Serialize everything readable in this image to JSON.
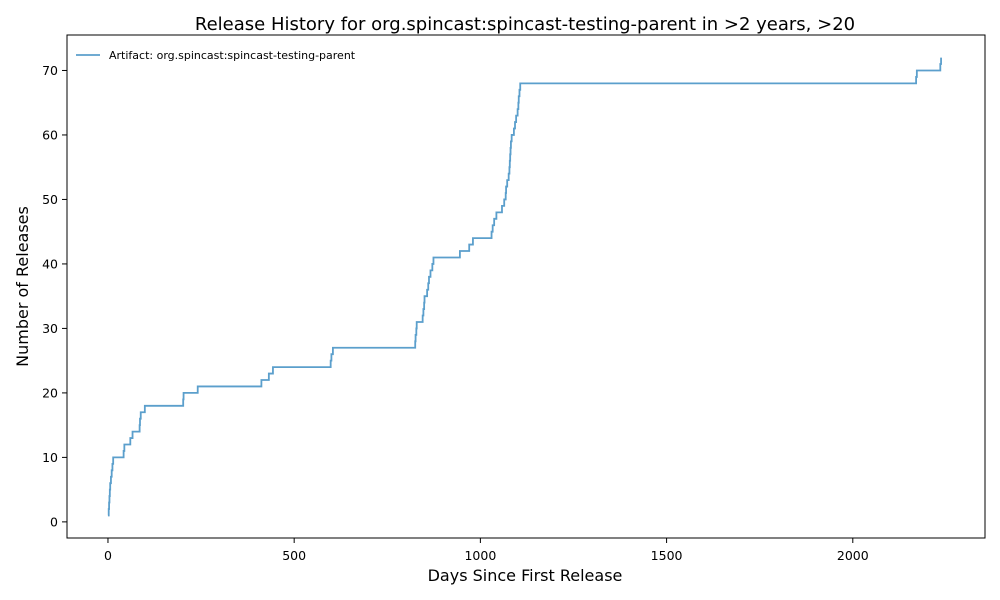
{
  "chart_data": {
    "type": "line",
    "title": "Release History for org.spincast:spincast-testing-parent in >2 years, >20",
    "xlabel": "Days Since First Release",
    "ylabel": "Number of Releases",
    "xlim": [
      -110,
      2355
    ],
    "ylim": [
      -2.5,
      75.5
    ],
    "xticks": [
      0,
      500,
      1000,
      1500,
      2000
    ],
    "yticks": [
      0,
      10,
      20,
      30,
      40,
      50,
      60,
      70
    ],
    "grid": false,
    "legend_position": "top-left",
    "line_style": "step-post",
    "series": [
      {
        "name": "Artifact: org.spincast:spincast-testing-parent",
        "color": "#5b9fcc",
        "points": [
          [
            0,
            1
          ],
          [
            2,
            2
          ],
          [
            3,
            3
          ],
          [
            4,
            4
          ],
          [
            5,
            5
          ],
          [
            6,
            6
          ],
          [
            8,
            7
          ],
          [
            10,
            8
          ],
          [
            12,
            9
          ],
          [
            14,
            10
          ],
          [
            42,
            11
          ],
          [
            44,
            12
          ],
          [
            60,
            13
          ],
          [
            66,
            14
          ],
          [
            85,
            15
          ],
          [
            86,
            16
          ],
          [
            88,
            17
          ],
          [
            99,
            18
          ],
          [
            202,
            19
          ],
          [
            203,
            20
          ],
          [
            241,
            21
          ],
          [
            412,
            22
          ],
          [
            432,
            23
          ],
          [
            443,
            24
          ],
          [
            598,
            25
          ],
          [
            600,
            26
          ],
          [
            604,
            27
          ],
          [
            825,
            28
          ],
          [
            826,
            29
          ],
          [
            828,
            30
          ],
          [
            829,
            31
          ],
          [
            845,
            32
          ],
          [
            847,
            33
          ],
          [
            849,
            34
          ],
          [
            850,
            35
          ],
          [
            857,
            36
          ],
          [
            860,
            37
          ],
          [
            862,
            38
          ],
          [
            866,
            39
          ],
          [
            871,
            40
          ],
          [
            874,
            41
          ],
          [
            945,
            42
          ],
          [
            970,
            43
          ],
          [
            980,
            44
          ],
          [
            1030,
            45
          ],
          [
            1033,
            46
          ],
          [
            1037,
            47
          ],
          [
            1043,
            48
          ],
          [
            1058,
            49
          ],
          [
            1064,
            50
          ],
          [
            1068,
            51
          ],
          [
            1069,
            52
          ],
          [
            1072,
            53
          ],
          [
            1076,
            54
          ],
          [
            1078,
            55
          ],
          [
            1079,
            56
          ],
          [
            1080,
            57
          ],
          [
            1081,
            58
          ],
          [
            1082,
            59
          ],
          [
            1084,
            60
          ],
          [
            1090,
            61
          ],
          [
            1093,
            62
          ],
          [
            1096,
            63
          ],
          [
            1100,
            64
          ],
          [
            1102,
            65
          ],
          [
            1103,
            66
          ],
          [
            1105,
            67
          ],
          [
            1107,
            68
          ],
          [
            2170,
            69
          ],
          [
            2172,
            70
          ],
          [
            2235,
            71
          ],
          [
            2237,
            72
          ]
        ]
      }
    ]
  }
}
